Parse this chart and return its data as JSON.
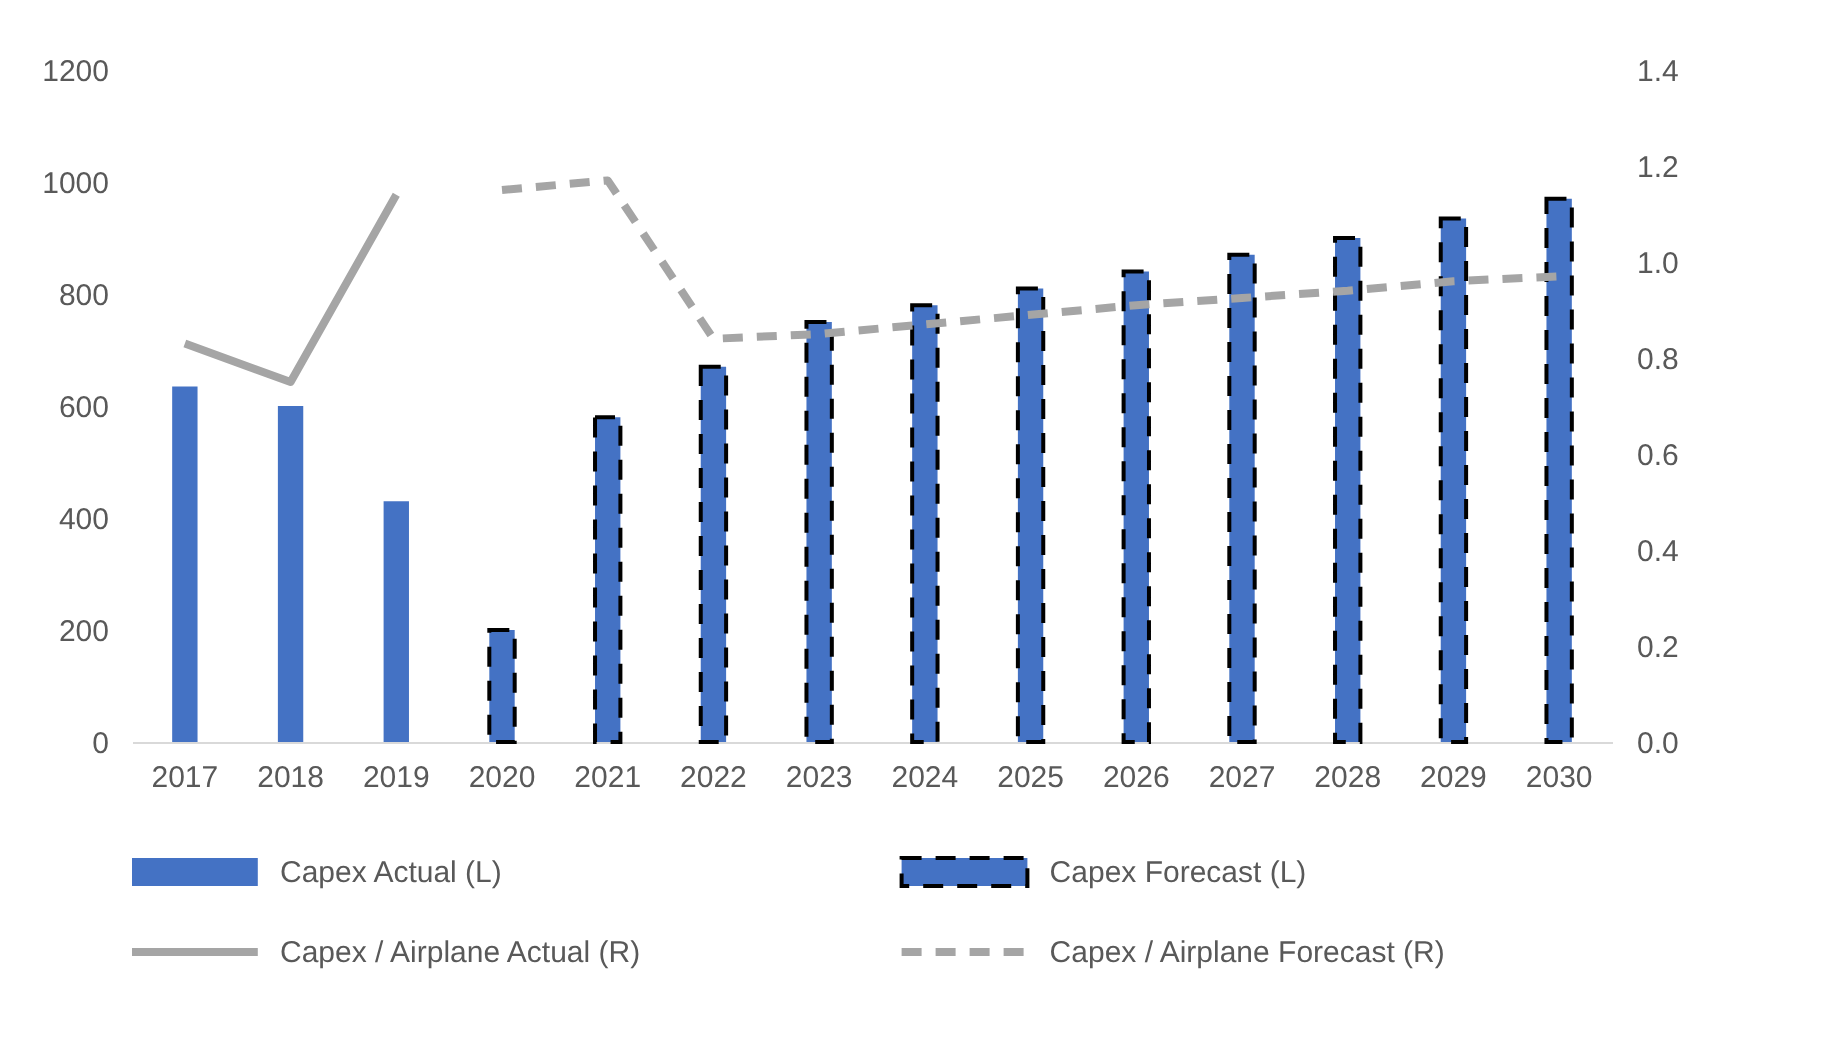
{
  "chart_data": {
    "type": "bar",
    "categories": [
      "2017",
      "2018",
      "2019",
      "2020",
      "2021",
      "2022",
      "2023",
      "2024",
      "2025",
      "2026",
      "2027",
      "2028",
      "2029",
      "2030"
    ],
    "series": [
      {
        "name": "Capex Actual (L)",
        "color": "#4472c4",
        "values": [
          635,
          600,
          430,
          null,
          null,
          null,
          null,
          null,
          null,
          null,
          null,
          null,
          null,
          null
        ]
      },
      {
        "name": "Capex Forecast (L)",
        "color": "#4472c4",
        "line_style": "dashed",
        "values": [
          null,
          null,
          null,
          200,
          580,
          670,
          750,
          780,
          810,
          840,
          870,
          900,
          935,
          970
        ]
      },
      {
        "name": "Capex / Airplane Actual (R)",
        "type": "line",
        "axis": "y2",
        "color": "#a5a5a5",
        "values": [
          0.83,
          0.75,
          1.14,
          null,
          null,
          null,
          null,
          null,
          null,
          null,
          null,
          null,
          null,
          null
        ]
      },
      {
        "name": "Capex / Airplane Forecast (R)",
        "type": "line",
        "axis": "y2",
        "color": "#a5a5a5",
        "line_style": "dashed",
        "values": [
          null,
          null,
          null,
          1.15,
          1.17,
          0.84,
          0.85,
          0.87,
          0.89,
          0.91,
          0.925,
          0.94,
          0.96,
          0.97
        ]
      }
    ],
    "ylim": [
      0,
      1200
    ],
    "yticks": [
      0,
      200,
      400,
      600,
      800,
      1000,
      1200
    ],
    "y2lim": [
      0,
      1.4
    ],
    "y2ticks": [
      {
        "value": 0,
        "label": "0.0"
      },
      0.2,
      0.4,
      0.6,
      0.8,
      {
        "value": 1,
        "label": "1.0"
      },
      1.2,
      1.4
    ],
    "legend": "bottom"
  }
}
